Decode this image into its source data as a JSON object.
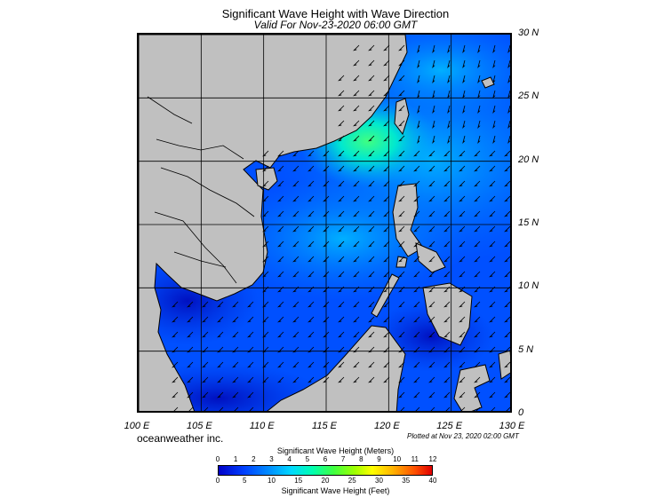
{
  "title": "Significant Wave Height with Wave Direction",
  "subtitle": "Valid For Nov-23-2020 06:00 GMT",
  "map": {
    "lon_range": [
      100,
      130
    ],
    "lat_range": [
      0,
      30
    ],
    "lon_labels": [
      "100 E",
      "105 E",
      "110 E",
      "115 E",
      "120 E",
      "125 E",
      "130 E"
    ],
    "lat_labels": [
      "30 N",
      "25 N",
      "20 N",
      "15 N",
      "10 N",
      "5 N",
      "0"
    ],
    "land_color": "#c0c0c0",
    "sea_base_color": "#0050ff"
  },
  "credit": "oceanweather inc.",
  "plotted": "Plotted at Nov 23, 2020 02:00 GMT",
  "colorbar": {
    "meters_title": "Significant Wave Height (Meters)",
    "feet_title": "Significant Wave Height (Feet)",
    "meters_ticks": [
      "0",
      "1",
      "2",
      "3",
      "4",
      "5",
      "6",
      "7",
      "8",
      "9",
      "10",
      "11",
      "12"
    ],
    "feet_ticks": [
      "0",
      "5",
      "10",
      "15",
      "20",
      "25",
      "30",
      "35",
      "40"
    ]
  }
}
